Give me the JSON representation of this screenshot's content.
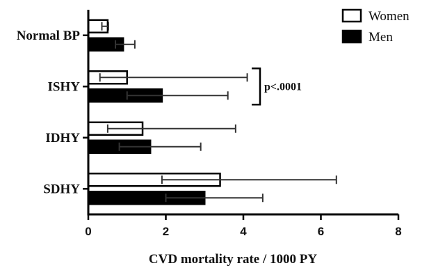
{
  "chart_data": {
    "type": "bar",
    "orientation": "horizontal",
    "categories": [
      "Normal BP",
      "ISHY",
      "IDHY",
      "SDHY"
    ],
    "series": [
      {
        "name": "Women",
        "fill": "#ffffff",
        "values": [
          0.5,
          1.0,
          1.4,
          3.4
        ],
        "err_low": [
          0.35,
          0.3,
          0.5,
          1.9
        ],
        "err_high": [
          0.52,
          4.1,
          3.8,
          6.4
        ]
      },
      {
        "name": "Men",
        "fill": "#000000",
        "values": [
          0.9,
          1.9,
          1.6,
          3.0
        ],
        "err_low": [
          0.7,
          1.0,
          0.8,
          2.0
        ],
        "err_high": [
          1.2,
          3.6,
          2.9,
          4.5
        ]
      }
    ],
    "xlim": [
      0,
      8
    ],
    "xticks": [
      "0",
      "2",
      "4",
      "6",
      "8"
    ],
    "xlabel": "CVD mortality rate / 1000  PY",
    "ylabel": "",
    "title": "",
    "legend_position": "top-right",
    "grid": false,
    "annotation": {
      "text": "p<.0001",
      "category": "ISHY"
    }
  }
}
